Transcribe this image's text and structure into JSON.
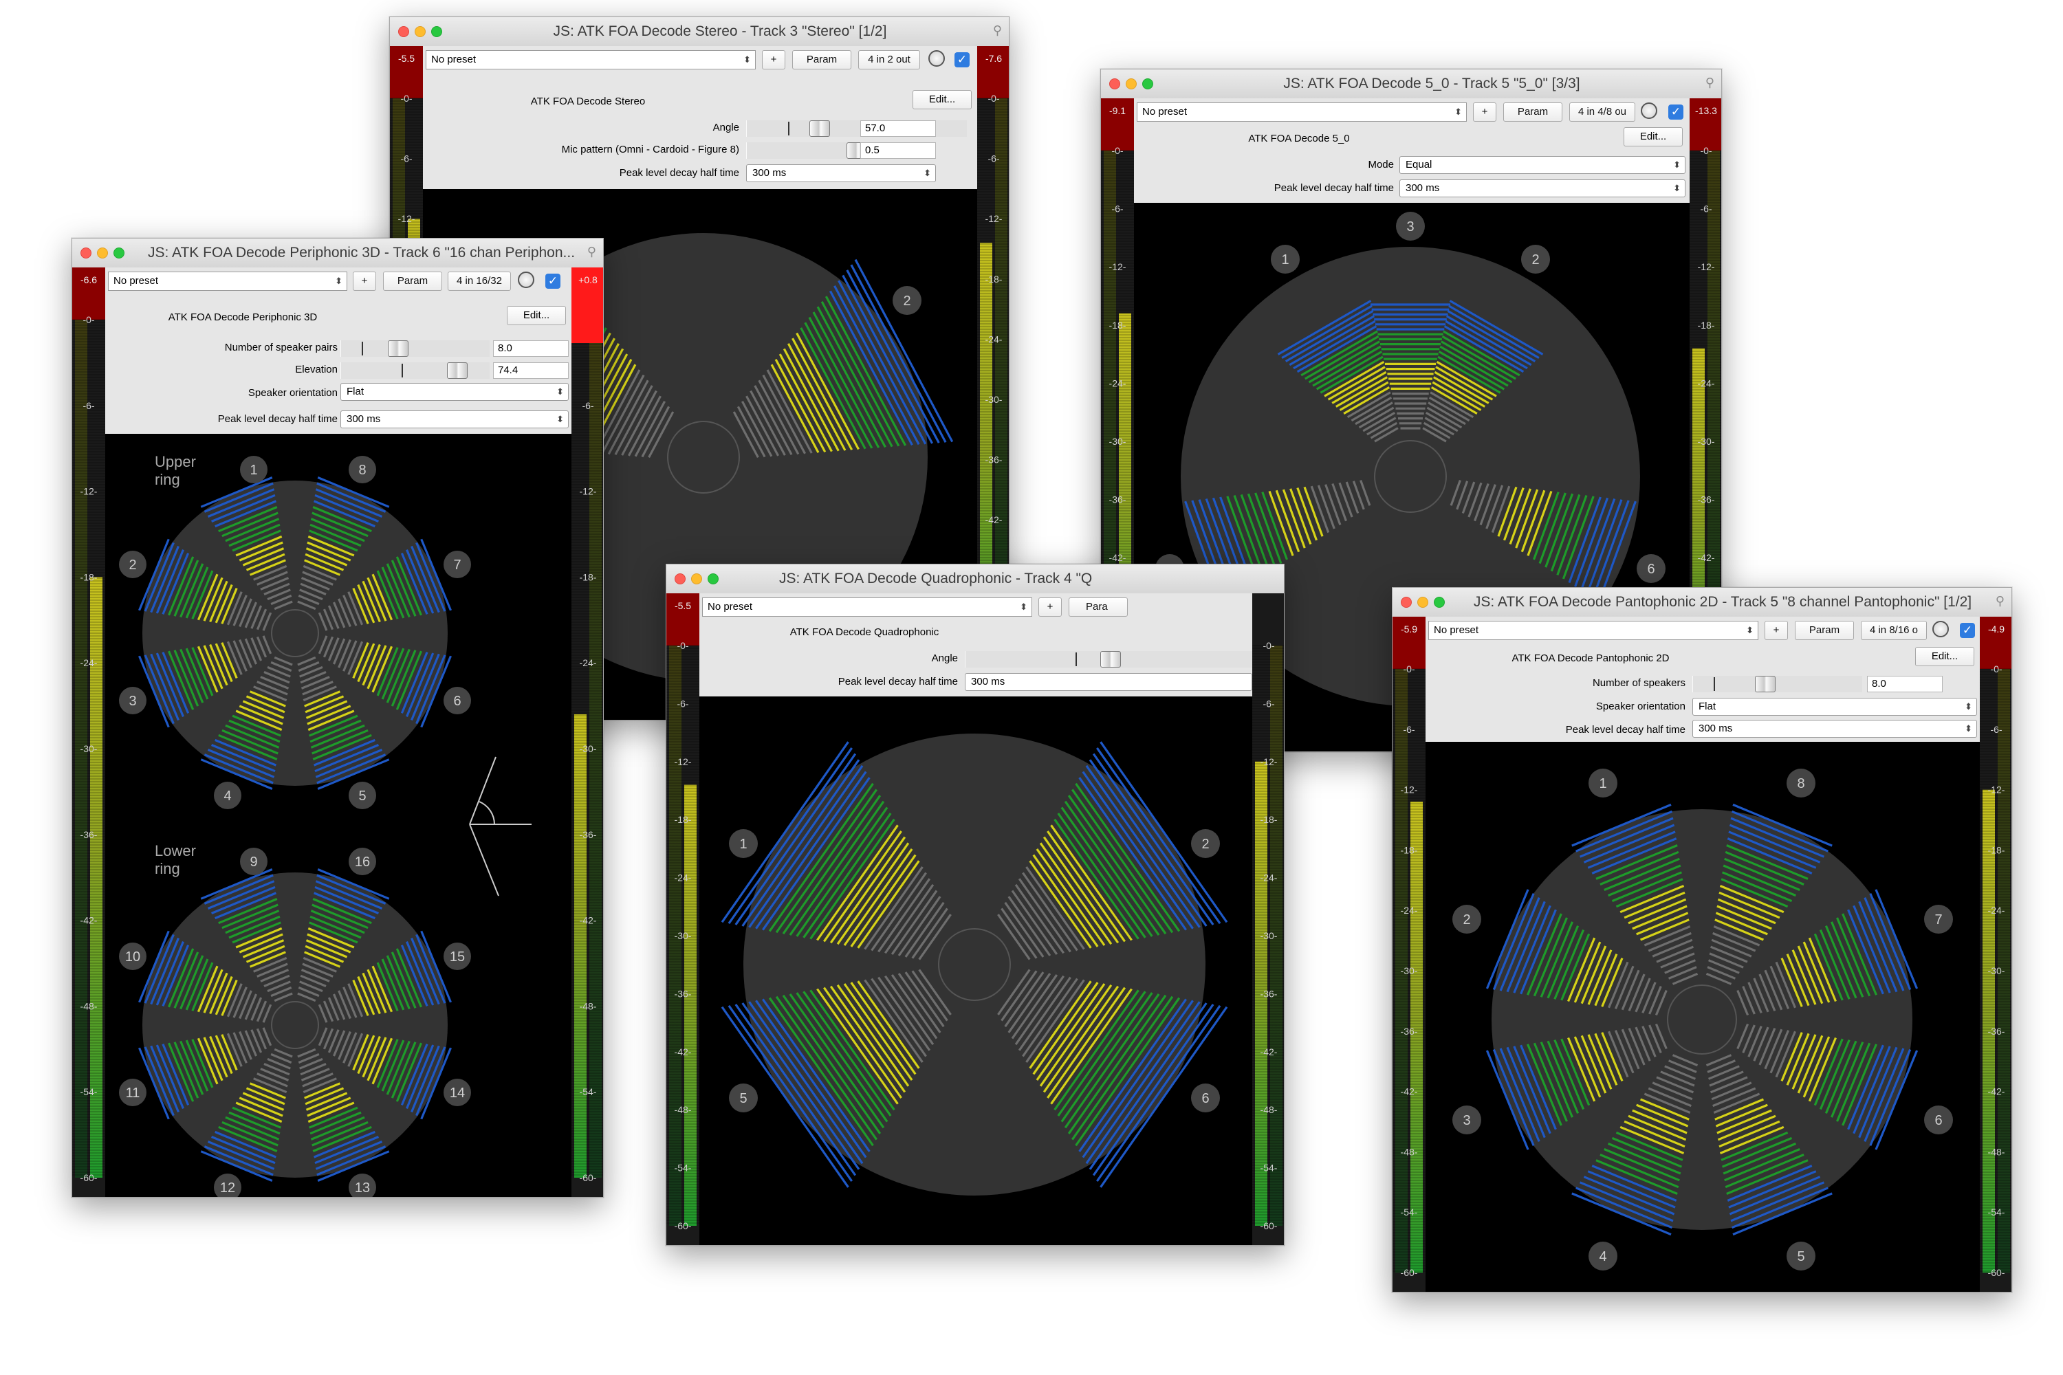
{
  "common": {
    "preset": "No preset",
    "plus": "+",
    "param": "Param",
    "edit": "Edit...",
    "decay_label": "Peak level decay half time",
    "decay_value": "300 ms"
  },
  "stereo": {
    "title": "JS: ATK FOA Decode Stereo - Track 3 \"Stereo\" [1/2]",
    "io": "4 in 2 out",
    "plugin_name": "ATK FOA Decode Stereo",
    "angle_label": "Angle",
    "angle_value": "57.0",
    "mic_label": "Mic pattern (Omni - Cardoid - Figure 8)",
    "mic_value": "0.5",
    "peak_left": "-5.5",
    "peak_right": "-7.6",
    "scale": [
      "-0-",
      "-6-",
      "-12-",
      "-18-",
      "-24-",
      "-30-",
      "-36-",
      "-42-",
      "-48-",
      "-54-",
      "-60-"
    ]
  },
  "periphonic": {
    "title": "JS: ATK FOA Decode Periphonic 3D - Track 6 \"16 chan Periphon...",
    "io": "4 in 16/32",
    "plugin_name": "ATK FOA Decode Periphonic 3D",
    "pairs_label": "Number of speaker pairs",
    "pairs_value": "8.0",
    "elev_label": "Elevation",
    "elev_value": "74.4",
    "orient_label": "Speaker orientation",
    "orient_value": "Flat",
    "upper_ring": "Upper\nring",
    "lower_ring": "Lower\nring",
    "peak_left": "-6.6",
    "peak_right": "+0.8",
    "scale": [
      "-0-",
      "-6-",
      "-12-",
      "-18-",
      "-24-",
      "-30-",
      "-36-",
      "-42-",
      "-48-",
      "-54-",
      "-60-"
    ]
  },
  "quad": {
    "title": "JS: ATK FOA Decode Quadrophonic - Track 4 \"Q",
    "plugin_name": "ATK FOA Decode Quadrophonic",
    "param_partial": "Para",
    "angle_label": "Angle",
    "peak_left": "-5.5",
    "scale": [
      "-0-",
      "-6-",
      "-12-",
      "-18-",
      "-24-",
      "-30-",
      "-36-",
      "-42-",
      "-48-",
      "-54-",
      "-60-"
    ]
  },
  "five": {
    "title": "JS: ATK FOA Decode 5_0 - Track 5 \"5_0\" [3/3]",
    "io": "4 in 4/8 ou",
    "plugin_name": "ATK FOA Decode 5_0",
    "mode_label": "Mode",
    "mode_value": "Equal",
    "peak_left": "-9.1",
    "peak_right": "-13.3",
    "scale": [
      "-0-",
      "-6-",
      "-12-",
      "-18-",
      "-24-",
      "-30-",
      "-36-",
      "-42-",
      "-48-",
      "-54-",
      "-60-"
    ]
  },
  "panto": {
    "title": "JS: ATK FOA Decode Pantophonic 2D - Track 5 \"8 channel Pantophonic\" [1/2]",
    "io": "4 in 8/16 o",
    "plugin_name": "ATK FOA Decode Pantophonic 2D",
    "num_label": "Number of speakers",
    "num_value": "8.0",
    "orient_label": "Speaker orientation",
    "orient_value": "Flat",
    "peak_left": "-5.9",
    "peak_right": "-4.9",
    "scale": [
      "-0-",
      "-6-",
      "-12-",
      "-18-",
      "-24-",
      "-30-",
      "-36-",
      "-42-",
      "-48-",
      "-54-",
      "-60-"
    ]
  },
  "colors": {
    "bg_circle": "#333333",
    "speaker_label": "#444444",
    "meter_grey": "#6e6e6e",
    "meter_yellow": "#d6d218",
    "meter_green": "#1e9b2a",
    "meter_blue": "#1e58c6",
    "vu_red": "#8a0000",
    "vu_clip": "#ff1a1a"
  }
}
